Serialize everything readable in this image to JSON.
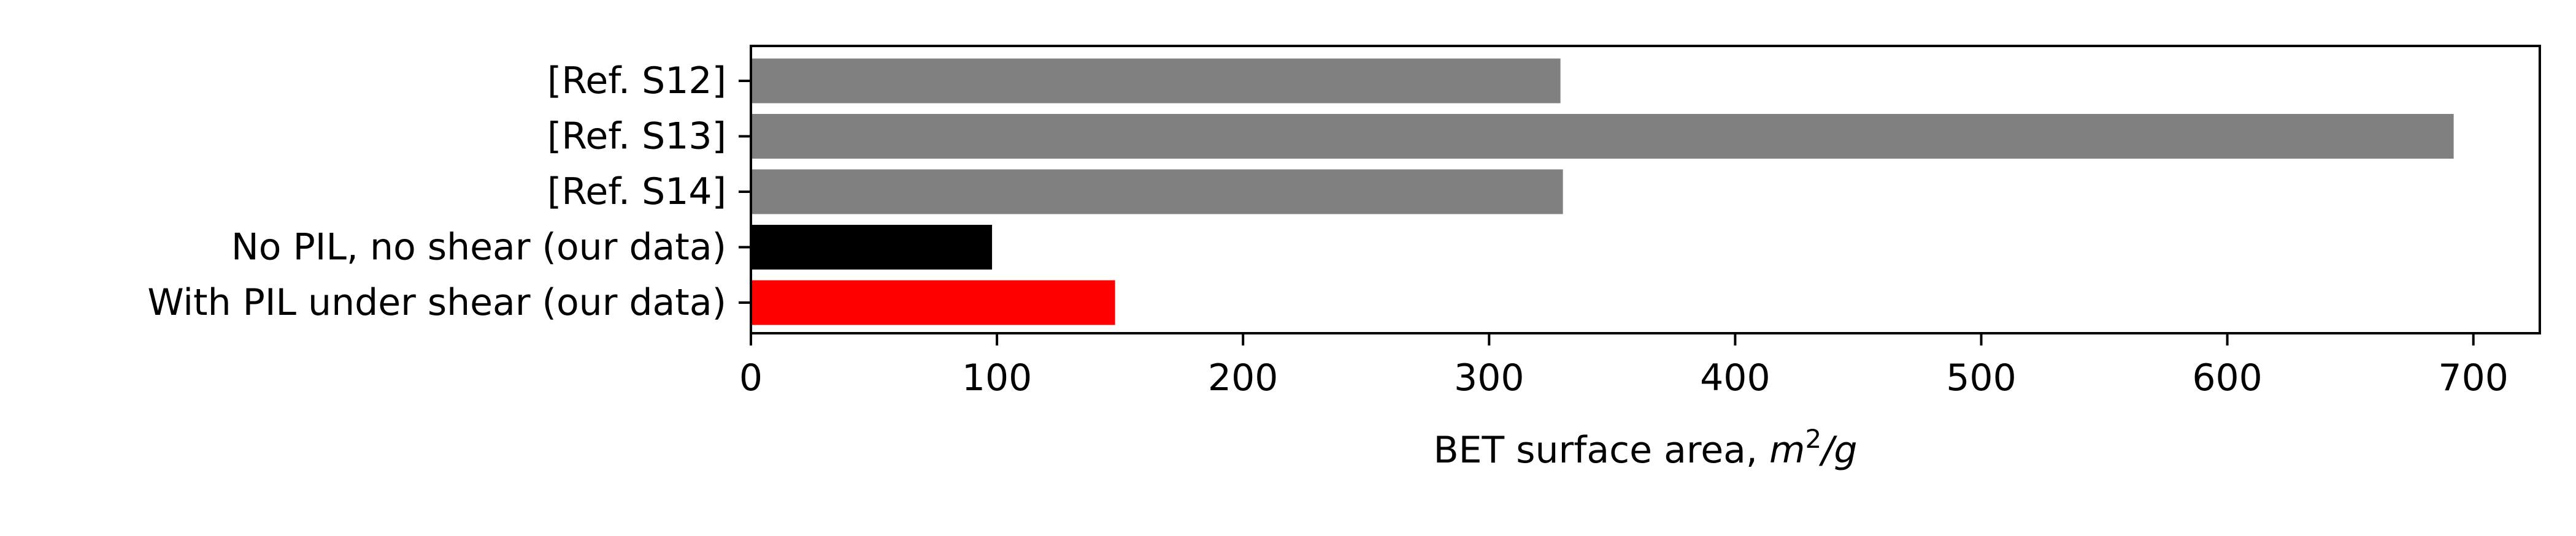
{
  "chart_data": {
    "type": "bar",
    "orientation": "horizontal",
    "categories": [
      "[Ref. S12]",
      "[Ref. S13]",
      "[Ref. S14]",
      "No PIL, no shear (our data)",
      "With PIL under shear (our data)"
    ],
    "values": [
      329,
      692,
      330,
      98,
      148
    ],
    "colors": [
      "#808080",
      "#808080",
      "#808080",
      "#000000",
      "#ff0000"
    ],
    "xlabel": {
      "text": "BET surface area, ",
      "unit_base": "m",
      "unit_exp": "2",
      "unit_tail": "/g"
    },
    "xlim": [
      0,
      727
    ],
    "xticks": [
      0,
      100,
      200,
      300,
      400,
      500,
      600,
      700
    ],
    "grid": false,
    "legend": "none"
  }
}
